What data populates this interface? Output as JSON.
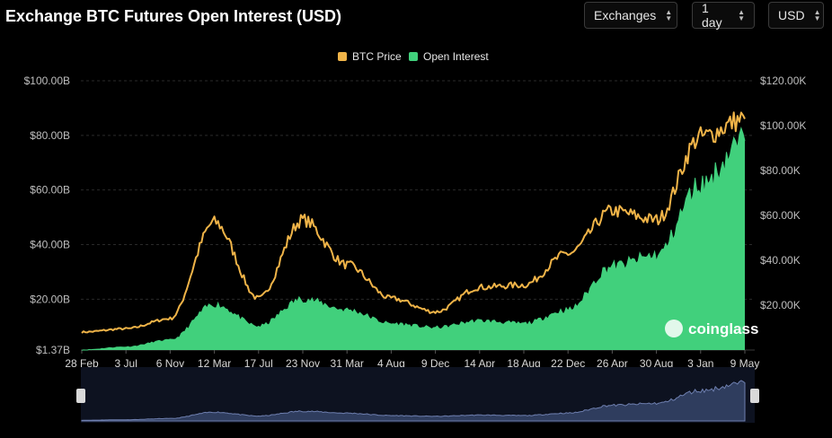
{
  "title": "Exchange BTC Futures Open Interest (USD)",
  "controls": {
    "exchanges": "Exchanges",
    "interval": "1 day",
    "currency": "USD"
  },
  "colors": {
    "price": "#F0B448",
    "open_interest": "#41D07C",
    "background": "#000000",
    "navigator_fill": "#2F3D5E",
    "navigator_line": "#6E7FAF"
  },
  "watermark": "coinglass",
  "chart_data": {
    "type": "area",
    "legend": [
      "BTC Price",
      "Open Interest"
    ],
    "legend_position": "top-center",
    "x_tick_labels": [
      "28 Feb",
      "3 Jul",
      "6 Nov",
      "12 Mar",
      "17 Jul",
      "23 Nov",
      "31 Mar",
      "4 Aug",
      "9 Dec",
      "14 Apr",
      "18 Aug",
      "22 Dec",
      "26 Apr",
      "30 Aug",
      "3 Jan",
      "9 May"
    ],
    "y_left_ticks": [
      "$1.37B",
      "$20.00B",
      "$40.00B",
      "$60.00B",
      "$80.00B",
      "$100.00B"
    ],
    "y_left_range": [
      1.37,
      100
    ],
    "y_left_unit": "B USD",
    "y_right_ticks": [
      "$20.00K",
      "$40.00K",
      "$60.00K",
      "$80.00K",
      "$100.00K",
      "$120.00K"
    ],
    "y_right_range": [
      0,
      120
    ],
    "y_right_unit": "K USD",
    "grid": true,
    "series": [
      {
        "name": "BTC Price",
        "axis": "right",
        "x": [
          "28 Feb",
          "3 Jul",
          "6 Nov",
          "12 Mar",
          "17 Jul",
          "23 Nov",
          "31 Mar",
          "4 Aug",
          "9 Dec",
          "14 Apr",
          "18 Aug",
          "22 Dec",
          "26 Apr",
          "30 Aug",
          "3 Jan",
          "9 May"
        ],
        "values": [
          8,
          9.5,
          14,
          57,
          23,
          58,
          38,
          23,
          17,
          28,
          29,
          43,
          62,
          58,
          95,
          103
        ]
      },
      {
        "name": "Open Interest",
        "axis": "left",
        "x": [
          "28 Feb",
          "3 Jul",
          "6 Nov",
          "12 Mar",
          "17 Jul",
          "23 Nov",
          "31 Mar",
          "4 Aug",
          "9 Dec",
          "14 Apr",
          "18 Aug",
          "22 Dec",
          "26 Apr",
          "30 Aug",
          "3 Jan",
          "9 May"
        ],
        "values": [
          1.4,
          2.5,
          5,
          18,
          10,
          20,
          16,
          11,
          9.5,
          12,
          11,
          16,
          32,
          36,
          62,
          78
        ]
      }
    ]
  }
}
